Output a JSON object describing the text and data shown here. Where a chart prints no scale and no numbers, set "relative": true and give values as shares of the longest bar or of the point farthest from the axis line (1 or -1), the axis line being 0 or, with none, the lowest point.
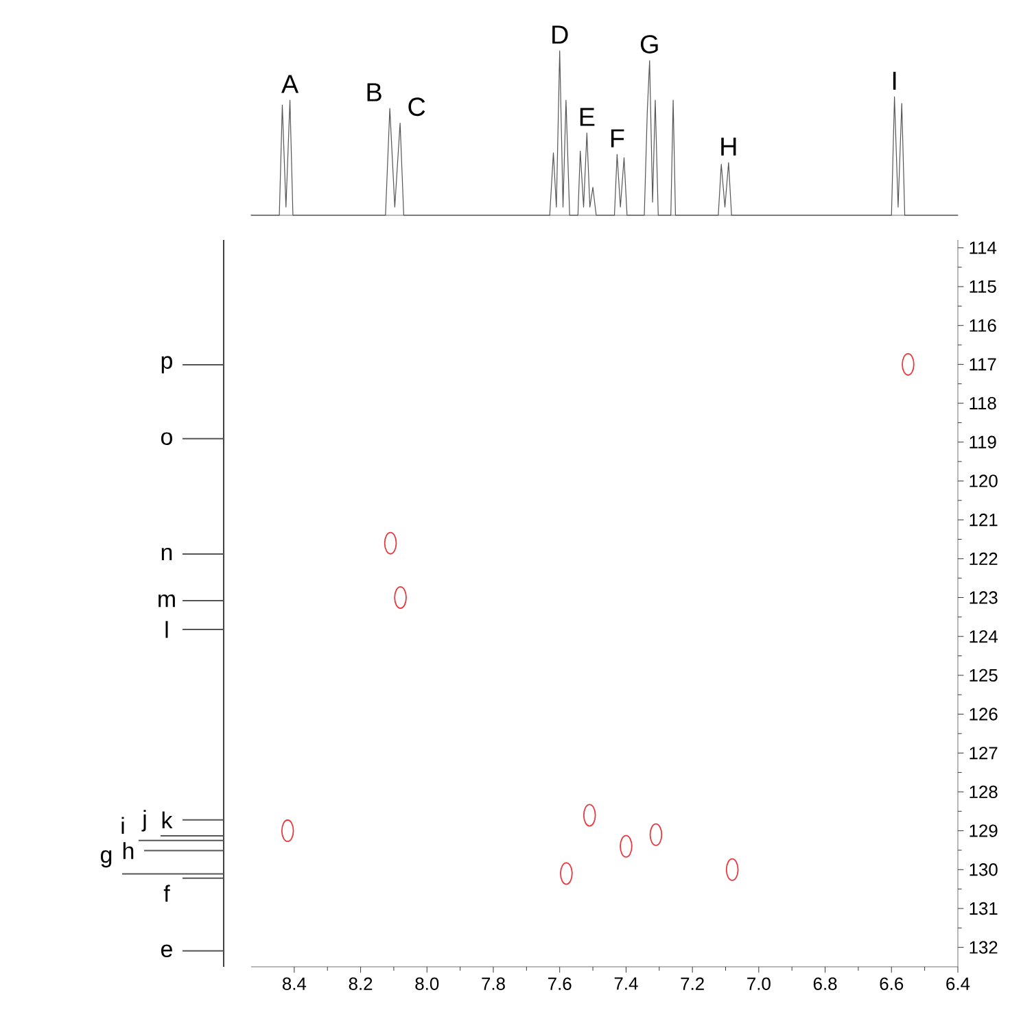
{
  "chart_data": [
    {
      "type": "line",
      "relative": true,
      "color": "#555555",
      "xlim": [
        8.53,
        6.4
      ],
      "tick_labels": false,
      "x": [
        8.53,
        8.445,
        8.436,
        8.425,
        8.413,
        8.404,
        8.125,
        8.112,
        8.097,
        8.081,
        8.07,
        7.63,
        7.619,
        7.61,
        7.6,
        7.59,
        7.581,
        7.57,
        7.545,
        7.538,
        7.528,
        7.518,
        7.509,
        7.5,
        7.49,
        7.435,
        7.427,
        7.417,
        7.406,
        7.397,
        7.345,
        7.336,
        7.329,
        7.32,
        7.312,
        7.303,
        7.265,
        7.258,
        7.251,
        7.122,
        7.113,
        7.102,
        7.091,
        7.082,
        6.6,
        6.591,
        6.58,
        6.569,
        6.56,
        6.4
      ],
      "values": [
        0,
        0,
        0.67,
        0.05,
        0.7,
        0,
        0,
        0.65,
        0.05,
        0.56,
        0,
        0,
        0.38,
        0.05,
        1.0,
        0.05,
        0.7,
        0,
        0,
        0.39,
        0.05,
        0.5,
        0.05,
        0.17,
        0,
        0,
        0.37,
        0.05,
        0.35,
        0,
        0,
        0.63,
        0.94,
        0.08,
        0.7,
        0,
        0,
        0.7,
        0,
        0,
        0.31,
        0.05,
        0.32,
        0,
        0,
        0.72,
        0.05,
        0.68,
        0,
        0
      ],
      "annotations": [
        {
          "text": "A",
          "x": 8.413,
          "y": 0.7
        },
        {
          "text": "B",
          "x": 8.112,
          "y": 0.65
        },
        {
          "text": "C",
          "x": 8.081,
          "y": 0.56
        },
        {
          "text": "D",
          "x": 7.6,
          "y": 1.0
        },
        {
          "text": "E",
          "x": 7.518,
          "y": 0.5
        },
        {
          "text": "F",
          "x": 7.427,
          "y": 0.37
        },
        {
          "text": "G",
          "x": 7.329,
          "y": 0.94
        },
        {
          "text": "H",
          "x": 7.091,
          "y": 0.32
        },
        {
          "text": "I",
          "x": 6.591,
          "y": 0.72
        }
      ]
    },
    {
      "type": "scatter",
      "color": "#e8383d",
      "marker": "circle",
      "x": [
        8.42,
        8.11,
        8.08,
        7.58,
        7.51,
        7.4,
        7.31,
        7.08,
        6.55
      ],
      "values": [
        129.0,
        121.6,
        123.0,
        130.1,
        128.6,
        129.4,
        129.1,
        130.0,
        117.0
      ],
      "xlim": [
        8.53,
        6.4
      ],
      "ylim": [
        132.5,
        113.8
      ],
      "xticks": [
        8.4,
        8.2,
        {
          "value": 8,
          "label": "8.0"
        },
        7.8,
        7.6,
        7.4,
        7.2,
        {
          "value": 7,
          "label": "7.0"
        },
        6.8,
        6.6,
        6.4
      ],
      "yticks": [
        114,
        115,
        116,
        117,
        118,
        119,
        120,
        121,
        122,
        123,
        124,
        125,
        126,
        127,
        128,
        129,
        130,
        131,
        132
      ],
      "ref_lines": [
        {
          "axis": "y",
          "value": 117.01,
          "label": "p"
        },
        {
          "axis": "y",
          "value": 118.91,
          "label": "o"
        },
        {
          "axis": "y",
          "value": 121.88,
          "label": "n"
        },
        {
          "axis": "y",
          "value": 123.08,
          "label": "m"
        },
        {
          "axis": "y",
          "value": 123.82,
          "label": "l"
        },
        {
          "axis": "y",
          "value": 128.72,
          "label": "k"
        },
        {
          "axis": "y",
          "value": 129.13,
          "label": "j"
        },
        {
          "axis": "y",
          "value": 129.25,
          "label": "i"
        },
        {
          "axis": "y",
          "value": 129.51,
          "label": "h"
        },
        {
          "axis": "y",
          "value": 130.11,
          "label": "g"
        },
        {
          "axis": "y",
          "value": 130.22,
          "label": "f"
        },
        {
          "axis": "y",
          "value": 132.09,
          "label": "e"
        }
      ]
    }
  ]
}
